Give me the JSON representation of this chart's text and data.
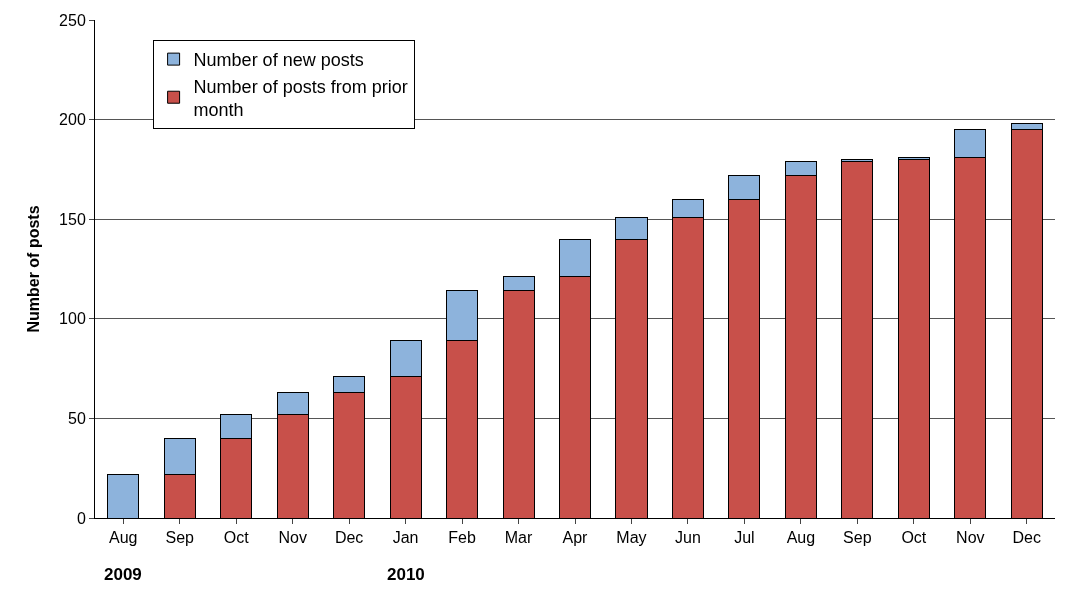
{
  "chart_data": {
    "type": "bar",
    "stacked": true,
    "ylabel": "Number of posts",
    "categories": [
      "Aug",
      "Sep",
      "Oct",
      "Nov",
      "Dec",
      "Jan",
      "Feb",
      "Mar",
      "Apr",
      "May",
      "Jun",
      "Jul",
      "Aug",
      "Sep",
      "Oct",
      "Nov",
      "Dec"
    ],
    "series": [
      {
        "name": "Number of posts from prior month",
        "color": "#c8504a",
        "values": [
          0,
          22,
          40,
          52,
          63,
          71,
          89,
          114,
          121,
          140,
          151,
          160,
          172,
          179,
          180,
          181,
          195
        ]
      },
      {
        "name": "Number of new posts",
        "color": "#8db3dc",
        "values": [
          22,
          18,
          12,
          11,
          8,
          18,
          25,
          7,
          19,
          11,
          9,
          12,
          7,
          1,
          1,
          14,
          3
        ]
      }
    ],
    "ylim": [
      0,
      250
    ],
    "yticks": [
      0,
      50,
      100,
      150,
      200,
      250
    ],
    "grid": "y",
    "legend": "top left",
    "annotations": [
      "2009",
      "2010"
    ]
  }
}
